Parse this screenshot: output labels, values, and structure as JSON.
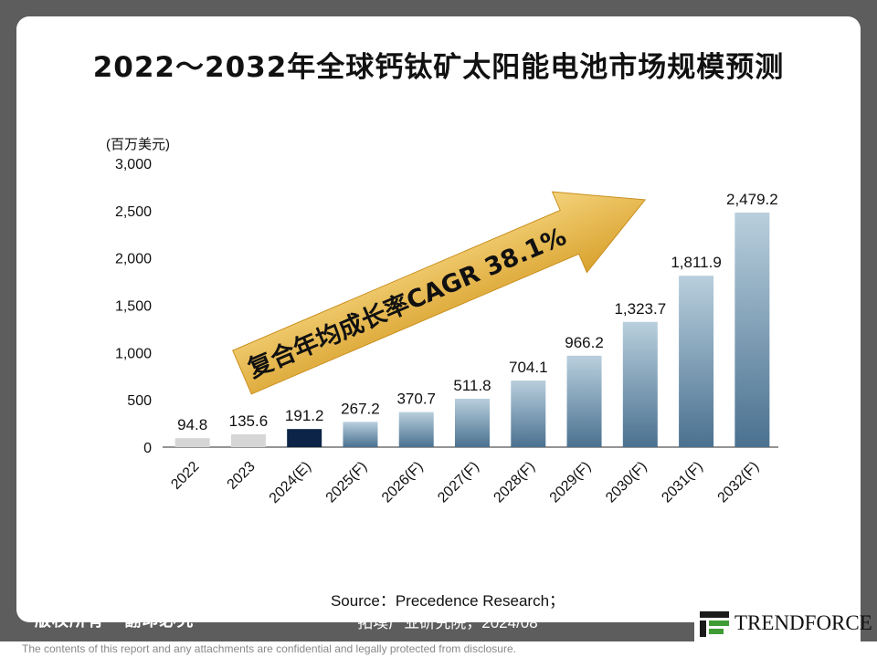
{
  "header": {
    "title": "2022～2032年全球钙钛矿太阳能电池市场规模预测"
  },
  "chart_data": {
    "type": "bar",
    "unit_label": "(百万美元)",
    "categories": [
      "2022",
      "2023",
      "2024(E)",
      "2025(F)",
      "2026(F)",
      "2027(F)",
      "2028(F)",
      "2029(F)",
      "2030(F)",
      "2031(F)",
      "2032(F)"
    ],
    "values": [
      94.8,
      135.6,
      191.2,
      267.2,
      370.7,
      511.8,
      704.1,
      966.2,
      1323.7,
      1811.9,
      2479.2
    ],
    "value_labels": [
      "94.8",
      "135.6",
      "191.2",
      "267.2",
      "370.7",
      "511.8",
      "704.1",
      "966.2",
      "1,323.7",
      "1,811.9",
      "2,479.2"
    ],
    "yticks": [
      "0",
      "500",
      "1,000",
      "1,500",
      "2,000",
      "2,500",
      "3,000"
    ],
    "ylim": [
      0,
      3000
    ],
    "annotation": "复合年均成长率CAGR 38.1%",
    "colors": {
      "historical": "#d6d6d6",
      "estimate": "#0b2447",
      "forecast_top": "#b9cfdd",
      "forecast_bottom": "#4a7190",
      "arrow": "#e9b94a"
    }
  },
  "source": {
    "line1": "Source：Precedence Research；",
    "line2": "拓墣产业研究院，2024/08"
  },
  "brand": {
    "copyright": "版权所有 · 翻印必究",
    "logo": "TRENDFORCE"
  },
  "footer": {
    "disclaimer": "The contents of this report and any attachments are confidential and legally protected from disclosure."
  }
}
